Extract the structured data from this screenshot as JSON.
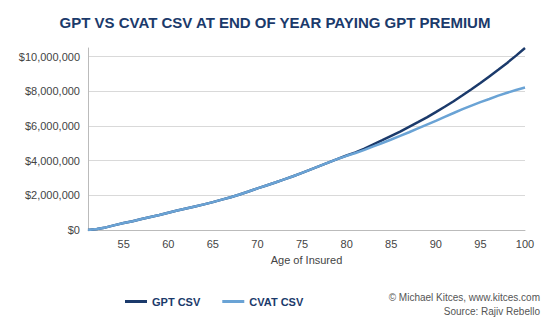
{
  "chart_data": {
    "type": "line",
    "title": "GPT VS CVAT CSV AT END OF YEAR PAYING GPT PREMIUM",
    "x_label": "Age of Insured",
    "annotations": [
      "© Michael Kitces, www.kitces.com",
      "Source: Rajiv Rebello"
    ],
    "x": [
      51,
      52,
      53,
      54,
      55,
      56,
      57,
      58,
      59,
      60,
      61,
      62,
      63,
      64,
      65,
      66,
      67,
      68,
      69,
      70,
      71,
      72,
      73,
      74,
      75,
      76,
      77,
      78,
      79,
      80,
      81,
      82,
      83,
      84,
      85,
      86,
      87,
      88,
      89,
      90,
      91,
      92,
      93,
      94,
      95,
      96,
      97,
      98,
      99,
      100
    ],
    "series": [
      {
        "name": "GPT CSV",
        "color": "#1b3a6b",
        "values": [
          0,
          60000,
          150000,
          280000,
          400000,
          510000,
          630000,
          750000,
          870000,
          1000000,
          1120000,
          1240000,
          1360000,
          1480000,
          1610000,
          1750000,
          1890000,
          2050000,
          2220000,
          2400000,
          2570000,
          2740000,
          2920000,
          3100000,
          3300000,
          3500000,
          3700000,
          3900000,
          4100000,
          4300000,
          4480000,
          4700000,
          4940000,
          5180000,
          5430000,
          5680000,
          5950000,
          6220000,
          6500000,
          6800000,
          7110000,
          7430000,
          7770000,
          8120000,
          8480000,
          8860000,
          9240000,
          9640000,
          10060000,
          10500000
        ]
      },
      {
        "name": "CVAT CSV",
        "color": "#6aa3d5",
        "values": [
          0,
          60000,
          150000,
          280000,
          400000,
          510000,
          630000,
          750000,
          870000,
          1000000,
          1120000,
          1240000,
          1360000,
          1480000,
          1610000,
          1750000,
          1890000,
          2050000,
          2220000,
          2400000,
          2570000,
          2740000,
          2920000,
          3100000,
          3300000,
          3500000,
          3700000,
          3900000,
          4100000,
          4280000,
          4440000,
          4620000,
          4820000,
          5020000,
          5220000,
          5430000,
          5640000,
          5860000,
          6080000,
          6300000,
          6530000,
          6750000,
          6970000,
          7180000,
          7380000,
          7560000,
          7750000,
          7920000,
          8080000,
          8220000
        ]
      }
    ],
    "xlim": [
      51,
      100
    ],
    "xticks": [
      55,
      60,
      65,
      70,
      75,
      80,
      85,
      90,
      95,
      100
    ],
    "ylim": [
      0,
      10500000
    ],
    "yticks": [
      {
        "value": 0,
        "label": "$0"
      },
      {
        "value": 2000000,
        "label": "$2,000,000"
      },
      {
        "value": 4000000,
        "label": "$4,000,000"
      },
      {
        "value": 6000000,
        "label": "$6,000,000"
      },
      {
        "value": 8000000,
        "label": "$8,000,000"
      },
      {
        "value": 10000000,
        "label": "$10,000,000"
      }
    ],
    "grid": true,
    "legend": "bottom"
  }
}
